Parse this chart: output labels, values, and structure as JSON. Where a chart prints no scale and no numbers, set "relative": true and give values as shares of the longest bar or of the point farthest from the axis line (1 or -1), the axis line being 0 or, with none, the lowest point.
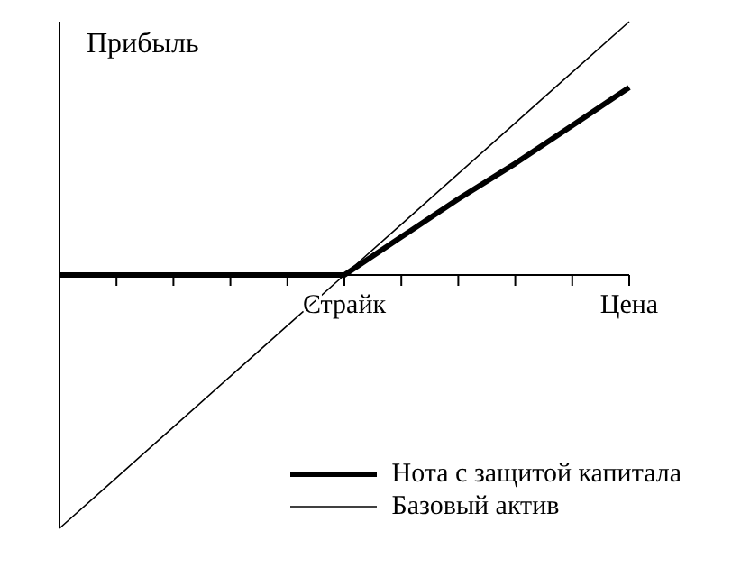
{
  "chart_data": {
    "type": "line",
    "relative": true,
    "ylabel": "Прибыль",
    "categories": [
      null,
      null,
      null,
      null,
      null,
      "Страйк",
      null,
      null,
      null,
      null,
      "Цена"
    ],
    "series": [
      {
        "name": "Нота с защитой капитала",
        "color": "#000000",
        "values": [
          0,
          0,
          0,
          0,
          0,
          0,
          0.15,
          0.3,
          0.44,
          0.59,
          0.74
        ]
      },
      {
        "name": "Базовый актив",
        "color": "#000000",
        "values": [
          -1,
          -0.8,
          -0.6,
          -0.4,
          -0.2,
          0,
          0.2,
          0.4,
          0.6,
          0.8,
          1
        ]
      }
    ],
    "legend": "bottom right",
    "marker": "none",
    "grid": false
  }
}
